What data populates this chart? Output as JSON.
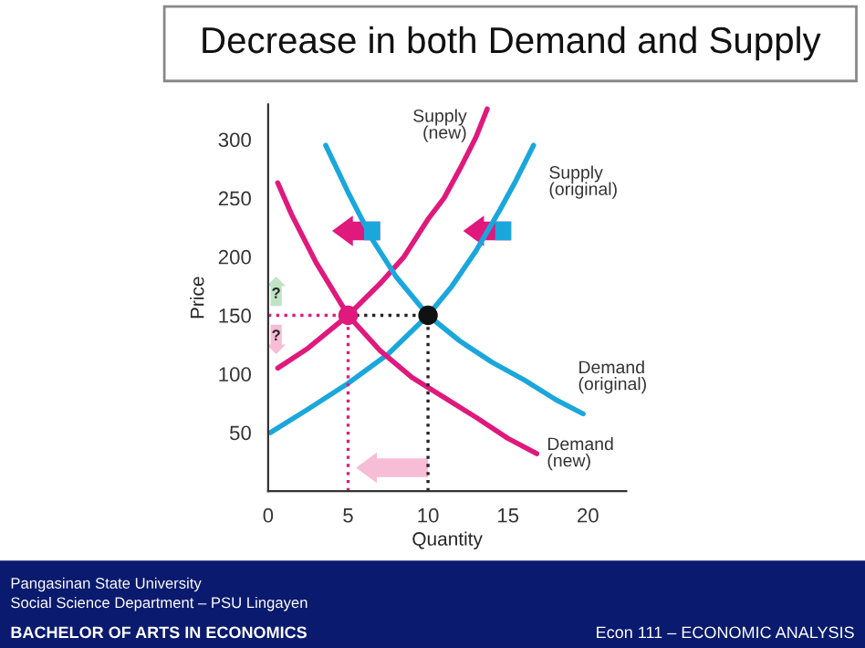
{
  "chart_data": {
    "type": "line",
    "title": "Decrease in both Demand and Supply",
    "xlabel": "Quantity",
    "ylabel": "Price",
    "xlim": [
      0,
      22.4
    ],
    "ylim": [
      0,
      330
    ],
    "xticks": [
      0,
      5,
      10,
      15,
      20
    ],
    "yticks": [
      50,
      100,
      150,
      200,
      250,
      300
    ],
    "grid": false,
    "legend": false,
    "series": [
      {
        "name": "Supply\n(new)",
        "color": "#e0197d",
        "x": [
          0.6,
          2.5,
          5,
          7,
          8.5,
          10,
          11,
          12,
          13,
          13.7
        ],
        "values": [
          105,
          122,
          150,
          177,
          200,
          232,
          250,
          275,
          302,
          326
        ],
        "line_style": "solid",
        "marker": "none"
      },
      {
        "name": "Supply\n(original)",
        "color": "#1aa7dc",
        "x": [
          0.15,
          2.5,
          5,
          7.5,
          10,
          11.5,
          13,
          14.5,
          15.5,
          16.6
        ],
        "values": [
          50,
          70,
          92,
          117,
          150,
          175,
          205,
          240,
          265,
          295
        ],
        "line_style": "solid",
        "marker": "none"
      },
      {
        "name": "Demand\n(original)",
        "color": "#1aa7dc",
        "x": [
          3.6,
          5,
          6.5,
          8,
          10,
          12,
          14,
          16,
          18,
          19.7
        ],
        "values": [
          295,
          255,
          215,
          183,
          150,
          128,
          110,
          95,
          78,
          66
        ],
        "line_style": "solid",
        "marker": "none"
      },
      {
        "name": "Demand\n(new)",
        "color": "#e0197d",
        "x": [
          0.6,
          1.5,
          3,
          5,
          7,
          9,
          11,
          13,
          15,
          16.8
        ],
        "values": [
          263,
          235,
          195,
          150,
          120,
          97,
          80,
          63,
          45,
          32
        ],
        "line_style": "solid",
        "marker": "none"
      },
      {
        "color": "#e0197d",
        "x": [
          0,
          5
        ],
        "values": [
          150,
          150
        ],
        "line_style": "dotted",
        "marker": "none"
      },
      {
        "color": "#222222",
        "x": [
          5,
          10
        ],
        "values": [
          150,
          150
        ],
        "line_style": "dotted",
        "marker": "none"
      },
      {
        "color": "#e0197d",
        "x": [
          5,
          5
        ],
        "values": [
          0,
          150
        ],
        "line_style": "dotted",
        "marker": "none"
      },
      {
        "color": "#222222",
        "x": [
          10,
          10
        ],
        "values": [
          0,
          150
        ],
        "line_style": "dotted",
        "marker": "none"
      },
      {
        "type": "scatter",
        "color": "#e0197d",
        "x": [
          5
        ],
        "values": [
          150
        ],
        "marker": "circle"
      },
      {
        "type": "scatter",
        "color": "#111111",
        "x": [
          10
        ],
        "values": [
          150
        ],
        "marker": "circle"
      }
    ],
    "annotations": [
      {
        "text": "?",
        "x": 0.5,
        "y": 168
      },
      {
        "text": "?",
        "x": 0.5,
        "y": 132
      },
      "Pangasinan State University",
      "Social Science Department – PSU Lingayen",
      "BACHELOR OF ARTS IN ECONOMICS",
      "Econ 111 – ECONOMIC ANALYSIS"
    ]
  }
}
